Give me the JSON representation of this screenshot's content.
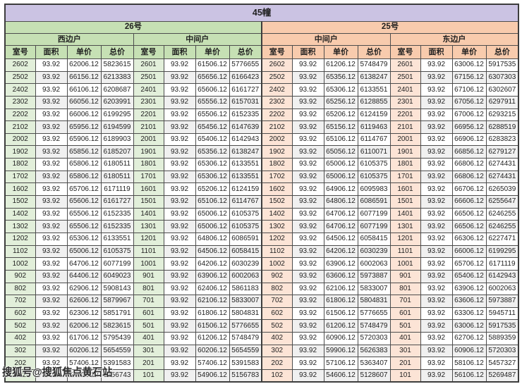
{
  "page": {
    "title": "45幢"
  },
  "watermark": "搜狐号@搜狐焦点黄石站",
  "colors": {
    "title_bg": "#cbc3e3",
    "green_header": "#c6e0b4",
    "green_room_cell": "#e2efda",
    "orange_header": "#f8cbad",
    "orange_room_cell": "#fce4d6",
    "stripe_row": "#f0f0f0",
    "border": "#3d3d3d"
  },
  "table": {
    "column_headers": [
      "室号",
      "面积",
      "单价",
      "总价"
    ],
    "buildings": [
      {
        "label": "26号",
        "theme": "green"
      },
      {
        "label": "25号",
        "theme": "orange"
      }
    ],
    "sections": [
      {
        "building": "26号",
        "side": "西边户",
        "theme": "green",
        "rows": [
          [
            "2602",
            "93.92",
            "62006.12",
            "5823615"
          ],
          [
            "2502",
            "93.92",
            "66156.12",
            "6213383"
          ],
          [
            "2402",
            "93.92",
            "66106.12",
            "6208687"
          ],
          [
            "2302",
            "93.92",
            "66056.12",
            "6203991"
          ],
          [
            "2202",
            "93.92",
            "66006.12",
            "6199295"
          ],
          [
            "2102",
            "93.92",
            "65956.12",
            "6194599"
          ],
          [
            "2002",
            "93.92",
            "65906.12",
            "6189903"
          ],
          [
            "1902",
            "93.92",
            "65856.12",
            "6185207"
          ],
          [
            "1802",
            "93.92",
            "65806.12",
            "6180511"
          ],
          [
            "1702",
            "93.92",
            "65806.12",
            "6180511"
          ],
          [
            "1602",
            "93.92",
            "65706.12",
            "6171119"
          ],
          [
            "1502",
            "93.92",
            "65606.12",
            "6161727"
          ],
          [
            "1402",
            "93.92",
            "65506.12",
            "6152335"
          ],
          [
            "1302",
            "93.92",
            "65506.12",
            "6152335"
          ],
          [
            "1202",
            "93.92",
            "65306.12",
            "6133551"
          ],
          [
            "1102",
            "93.92",
            "65006.12",
            "6105375"
          ],
          [
            "1002",
            "93.92",
            "64706.12",
            "6077199"
          ],
          [
            "902",
            "93.92",
            "64406.12",
            "6049023"
          ],
          [
            "802",
            "93.92",
            "62906.12",
            "5908143"
          ],
          [
            "702",
            "93.92",
            "62606.12",
            "5879967"
          ],
          [
            "602",
            "93.92",
            "62306.12",
            "5851791"
          ],
          [
            "502",
            "93.92",
            "62006.12",
            "5823615"
          ],
          [
            "402",
            "93.92",
            "61706.12",
            "5795439"
          ],
          [
            "302",
            "93.92",
            "60206.12",
            "5654559"
          ],
          [
            "202",
            "93.92",
            "57406.12",
            "5391583"
          ],
          [
            "102",
            "93.92",
            "54906.12",
            "5156743"
          ]
        ]
      },
      {
        "building": "26号",
        "side": "中间户",
        "theme": "green",
        "rows": [
          [
            "2601",
            "93.92",
            "61506.12",
            "5776655"
          ],
          [
            "2501",
            "93.92",
            "65656.12",
            "6166423"
          ],
          [
            "2401",
            "93.92",
            "65606.12",
            "6161727"
          ],
          [
            "2301",
            "93.92",
            "65556.12",
            "6157031"
          ],
          [
            "2201",
            "93.92",
            "65506.12",
            "6152335"
          ],
          [
            "2101",
            "93.92",
            "65456.12",
            "6147639"
          ],
          [
            "2001",
            "93.92",
            "65406.12",
            "6142943"
          ],
          [
            "1901",
            "93.92",
            "65356.12",
            "6138247"
          ],
          [
            "1801",
            "93.92",
            "65306.12",
            "6133551"
          ],
          [
            "1701",
            "93.92",
            "65306.12",
            "6133551"
          ],
          [
            "1601",
            "93.92",
            "65206.12",
            "6124159"
          ],
          [
            "1501",
            "93.92",
            "65106.12",
            "6114767"
          ],
          [
            "1401",
            "93.92",
            "65006.12",
            "6105375"
          ],
          [
            "1301",
            "93.92",
            "65006.12",
            "6105375"
          ],
          [
            "1201",
            "93.92",
            "64806.12",
            "6086591"
          ],
          [
            "1101",
            "93.92",
            "64506.12",
            "6058415"
          ],
          [
            "1001",
            "93.92",
            "64206.12",
            "6030239"
          ],
          [
            "901",
            "93.92",
            "63906.12",
            "6002063"
          ],
          [
            "801",
            "93.92",
            "62406.12",
            "5861183"
          ],
          [
            "701",
            "93.92",
            "62106.12",
            "5833007"
          ],
          [
            "601",
            "93.92",
            "61806.12",
            "5804831"
          ],
          [
            "501",
            "93.92",
            "61506.12",
            "5776655"
          ],
          [
            "401",
            "93.92",
            "61206.12",
            "5748479"
          ],
          [
            "301",
            "93.92",
            "60206.12",
            "5654559"
          ],
          [
            "201",
            "93.92",
            "57406.12",
            "5391583"
          ],
          [
            "101",
            "93.92",
            "54906.12",
            "5156783"
          ]
        ]
      },
      {
        "building": "25号",
        "side": "中间户",
        "theme": "orange",
        "rows": [
          [
            "2602",
            "93.92",
            "61206.12",
            "5748479"
          ],
          [
            "2502",
            "93.92",
            "65356.12",
            "6138247"
          ],
          [
            "2402",
            "93.92",
            "65306.12",
            "6133551"
          ],
          [
            "2302",
            "93.92",
            "65256.12",
            "6128855"
          ],
          [
            "2202",
            "93.92",
            "65206.12",
            "6124159"
          ],
          [
            "2102",
            "93.92",
            "65156.12",
            "6119463"
          ],
          [
            "2002",
            "93.92",
            "65106.12",
            "6114767"
          ],
          [
            "1902",
            "93.92",
            "65056.12",
            "6110071"
          ],
          [
            "1802",
            "93.92",
            "65006.12",
            "6105375"
          ],
          [
            "1702",
            "93.92",
            "65006.12",
            "6105375"
          ],
          [
            "1602",
            "93.92",
            "64906.12",
            "6095983"
          ],
          [
            "1502",
            "93.92",
            "64806.12",
            "6086591"
          ],
          [
            "1402",
            "93.92",
            "64706.12",
            "6077199"
          ],
          [
            "1302",
            "93.92",
            "64706.12",
            "6077199"
          ],
          [
            "1202",
            "93.92",
            "64506.12",
            "6058415"
          ],
          [
            "1102",
            "93.92",
            "64206.12",
            "6030239"
          ],
          [
            "1002",
            "93.92",
            "63906.12",
            "6002063"
          ],
          [
            "902",
            "93.92",
            "63606.12",
            "5973887"
          ],
          [
            "802",
            "93.92",
            "62106.12",
            "5833007"
          ],
          [
            "702",
            "93.92",
            "61806.12",
            "5804831"
          ],
          [
            "602",
            "93.92",
            "61506.12",
            "5776655"
          ],
          [
            "502",
            "93.92",
            "61206.12",
            "5748479"
          ],
          [
            "402",
            "93.92",
            "60906.12",
            "5720303"
          ],
          [
            "302",
            "93.92",
            "59906.12",
            "5626383"
          ],
          [
            "202",
            "93.92",
            "57106.12",
            "5363407"
          ],
          [
            "102",
            "93.92",
            "54606.12",
            "5128607"
          ]
        ]
      },
      {
        "building": "25号",
        "side": "东边户",
        "theme": "orange",
        "rows": [
          [
            "2601",
            "93.92",
            "63006.12",
            "5917535"
          ],
          [
            "2501",
            "93.92",
            "67156.12",
            "6307303"
          ],
          [
            "2401",
            "93.92",
            "67106.12",
            "6302607"
          ],
          [
            "2301",
            "93.92",
            "67056.12",
            "6297911"
          ],
          [
            "2201",
            "93.92",
            "67006.12",
            "6293215"
          ],
          [
            "2101",
            "93.92",
            "66956.12",
            "6288519"
          ],
          [
            "2001",
            "93.92",
            "66906.12",
            "6283823"
          ],
          [
            "1901",
            "93.92",
            "66856.12",
            "6279127"
          ],
          [
            "1801",
            "93.92",
            "66806.12",
            "6274431"
          ],
          [
            "1701",
            "93.92",
            "66806.12",
            "6274431"
          ],
          [
            "1601",
            "93.92",
            "66706.12",
            "6265039"
          ],
          [
            "1501",
            "93.92",
            "66606.12",
            "6255647"
          ],
          [
            "1401",
            "93.92",
            "66506.12",
            "6246255"
          ],
          [
            "1301",
            "93.92",
            "66506.12",
            "6246255"
          ],
          [
            "1201",
            "93.92",
            "66306.12",
            "6227471"
          ],
          [
            "1101",
            "93.92",
            "66006.12",
            "6199295"
          ],
          [
            "1001",
            "93.92",
            "65706.12",
            "6171119"
          ],
          [
            "901",
            "93.92",
            "65406.12",
            "6142943"
          ],
          [
            "801",
            "93.92",
            "63906.12",
            "6002063"
          ],
          [
            "701",
            "93.92",
            "63606.12",
            "5973887"
          ],
          [
            "601",
            "93.92",
            "63306.12",
            "5945711"
          ],
          [
            "501",
            "93.92",
            "63006.12",
            "5917535"
          ],
          [
            "401",
            "93.92",
            "62706.12",
            "5889359"
          ],
          [
            "301",
            "93.92",
            "60906.12",
            "5720303"
          ],
          [
            "201",
            "93.92",
            "58106.12",
            "5457327"
          ],
          [
            "101",
            "93.92",
            "56106.12",
            "5269487"
          ]
        ]
      }
    ]
  }
}
